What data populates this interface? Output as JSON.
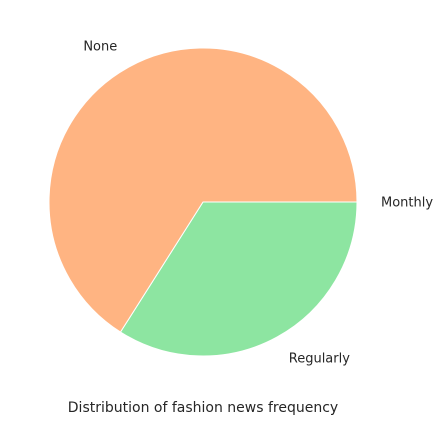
{
  "chart_data": {
    "type": "pie",
    "title": "Distribution of fashion news frequency",
    "start_angle_deg": 0,
    "direction": "clockwise",
    "legend": "none",
    "slices": [
      {
        "label": "Monthly",
        "value": 0.0,
        "color": "#8de5a1"
      },
      {
        "label": "Regularly",
        "value": 34.0,
        "color": "#8de5a1"
      },
      {
        "label": "None",
        "value": 66.0,
        "color": "#ffb482"
      }
    ]
  }
}
